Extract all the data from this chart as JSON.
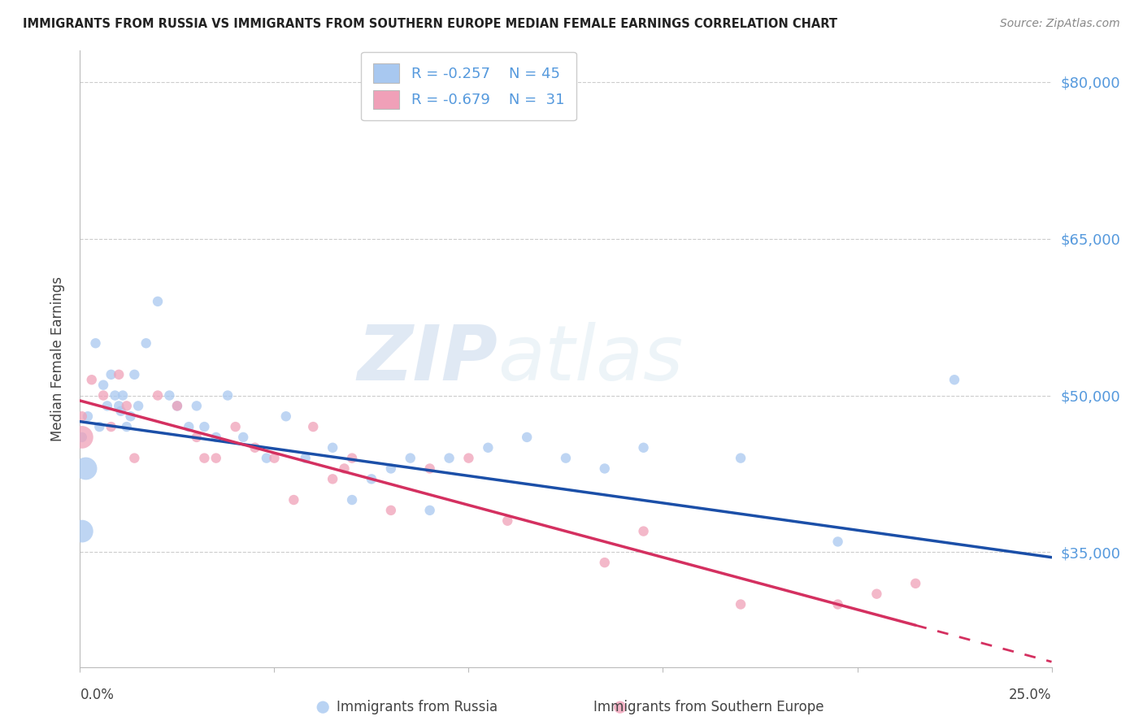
{
  "title": "IMMIGRANTS FROM RUSSIA VS IMMIGRANTS FROM SOUTHERN EUROPE MEDIAN FEMALE EARNINGS CORRELATION CHART",
  "source": "Source: ZipAtlas.com",
  "ylabel": "Median Female Earnings",
  "y_ticks": [
    35000,
    50000,
    65000,
    80000
  ],
  "y_tick_labels": [
    "$35,000",
    "$50,000",
    "$65,000",
    "$80,000"
  ],
  "x_min": 0.0,
  "x_max": 25.0,
  "y_min": 24000,
  "y_max": 83000,
  "watermark_zip": "ZIP",
  "watermark_atlas": "atlas",
  "legend_r1": "R = -0.257",
  "legend_n1": "N = 45",
  "legend_r2": "R = -0.679",
  "legend_n2": "N =  31",
  "color_blue": "#A8C8F0",
  "color_pink": "#F0A0B8",
  "line_color_blue": "#1B4FA8",
  "line_color_pink": "#D43060",
  "label_color": "#5599DD",
  "russia_x": [
    0.05,
    0.2,
    0.4,
    0.5,
    0.6,
    0.7,
    0.8,
    0.9,
    1.0,
    1.05,
    1.1,
    1.2,
    1.3,
    1.4,
    1.5,
    1.7,
    2.0,
    2.3,
    2.5,
    2.8,
    3.0,
    3.2,
    3.5,
    3.8,
    4.2,
    4.8,
    5.3,
    5.8,
    6.5,
    7.0,
    7.5,
    8.0,
    8.5,
    9.0,
    9.5,
    10.5,
    11.5,
    12.5,
    13.5,
    14.5,
    17.0,
    19.5,
    22.5,
    0.05,
    0.15
  ],
  "russia_y": [
    46000,
    48000,
    55000,
    47000,
    51000,
    49000,
    52000,
    50000,
    49000,
    48500,
    50000,
    47000,
    48000,
    52000,
    49000,
    55000,
    59000,
    50000,
    49000,
    47000,
    49000,
    47000,
    46000,
    50000,
    46000,
    44000,
    48000,
    44000,
    45000,
    40000,
    42000,
    43000,
    44000,
    39000,
    44000,
    45000,
    46000,
    44000,
    43000,
    45000,
    44000,
    36000,
    51500,
    37000,
    43000
  ],
  "russia_sizes": [
    80,
    80,
    80,
    80,
    80,
    80,
    80,
    80,
    80,
    80,
    80,
    80,
    80,
    80,
    80,
    80,
    80,
    80,
    80,
    80,
    80,
    80,
    80,
    80,
    80,
    80,
    80,
    80,
    80,
    80,
    80,
    80,
    80,
    80,
    80,
    80,
    80,
    80,
    80,
    80,
    80,
    80,
    80,
    400,
    400
  ],
  "southern_x": [
    0.05,
    0.3,
    0.6,
    0.8,
    1.0,
    1.2,
    1.4,
    2.0,
    2.5,
    3.0,
    3.5,
    4.0,
    4.5,
    5.0,
    5.5,
    6.0,
    6.5,
    7.0,
    8.0,
    9.0,
    10.0,
    11.0,
    13.5,
    14.5,
    17.0,
    19.5,
    20.5,
    21.5,
    0.05,
    3.2,
    6.8
  ],
  "southern_y": [
    48000,
    51500,
    50000,
    47000,
    52000,
    49000,
    44000,
    50000,
    49000,
    46000,
    44000,
    47000,
    45000,
    44000,
    40000,
    47000,
    42000,
    44000,
    39000,
    43000,
    44000,
    38000,
    34000,
    37000,
    30000,
    30000,
    31000,
    32000,
    46000,
    44000,
    43000
  ],
  "southern_sizes": [
    80,
    80,
    80,
    80,
    80,
    80,
    80,
    80,
    80,
    80,
    80,
    80,
    80,
    80,
    80,
    80,
    80,
    80,
    80,
    80,
    80,
    80,
    80,
    80,
    80,
    80,
    80,
    80,
    400,
    80,
    80
  ],
  "blue_line_x0": 0.0,
  "blue_line_y0": 47500,
  "blue_line_x1": 25.0,
  "blue_line_y1": 34500,
  "pink_line_x0": 0.0,
  "pink_line_y0": 49500,
  "pink_line_x1": 21.5,
  "pink_line_y1": 28000,
  "pink_dash_x0": 21.5,
  "pink_dash_y0": 28000,
  "pink_dash_x1": 25.0,
  "pink_dash_y1": 24500
}
